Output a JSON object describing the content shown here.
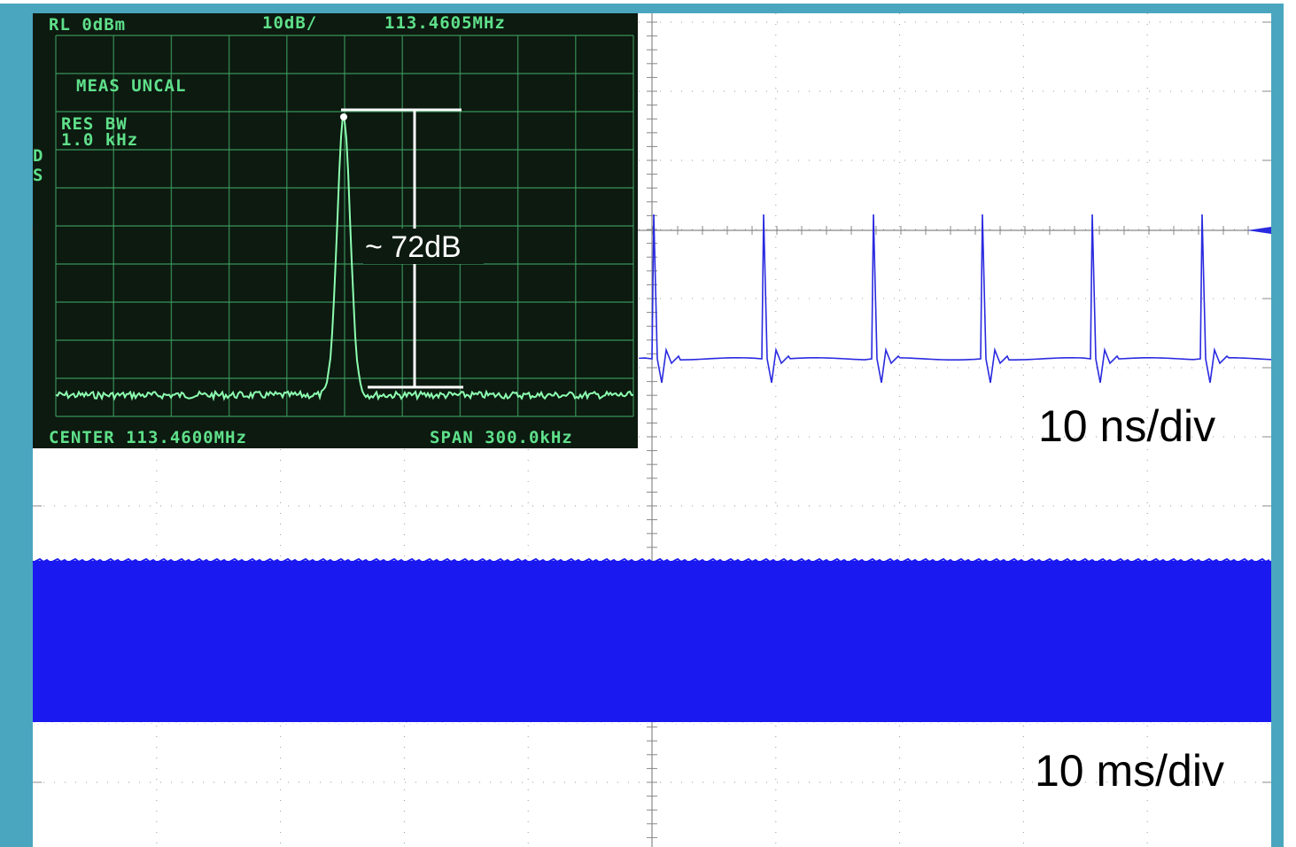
{
  "spectrum": {
    "reference_level": "RL 0dBm",
    "scale": "10dB/",
    "marker_frequency": "113.4605MHz",
    "status": "MEAS UNCAL",
    "res_bw_label": "RES BW",
    "res_bw_value": "1.0 kHz",
    "side_labels": [
      "D",
      "S"
    ],
    "annotation": "~ 72dB",
    "center": "CENTER 113.4600MHz",
    "span": "SPAN 300.0kHz"
  },
  "scope": {
    "top_timebase": "10 ns/div",
    "bottom_timebase": "10 ms/div"
  }
}
